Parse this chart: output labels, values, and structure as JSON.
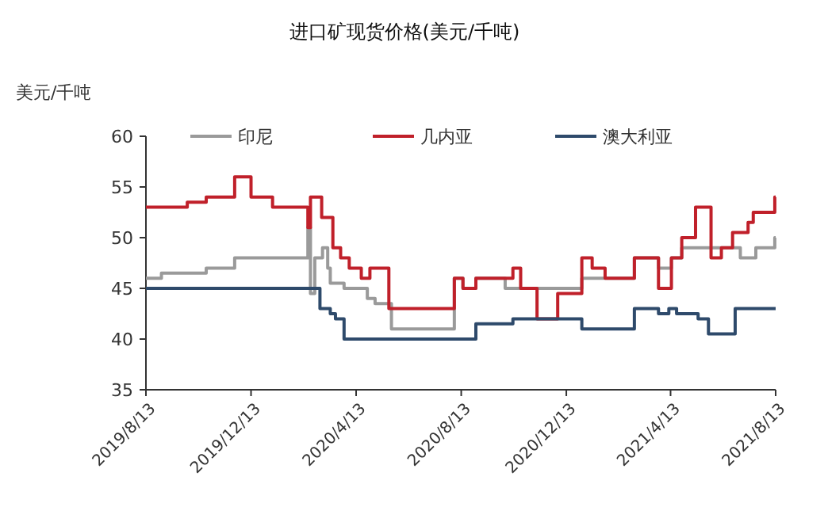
{
  "chart_data": {
    "type": "step",
    "title": "进口矿现货价格(美元/千吨)",
    "ylabel": "美元/千吨",
    "legend": "top",
    "grid": false,
    "line_style": "solid",
    "xlim": [
      "2019-08-13",
      "2021-08-13"
    ],
    "xticks": [
      {
        "value": "2019-08-13",
        "label": "2019/8/13"
      },
      {
        "value": "2019-12-13",
        "label": "2019/12/13"
      },
      {
        "value": "2020-04-13",
        "label": "2020/4/13"
      },
      {
        "value": "2020-08-13",
        "label": "2020/8/13"
      },
      {
        "value": "2020-12-13",
        "label": "2020/12/13"
      },
      {
        "value": "2021-04-13",
        "label": "2021/4/13"
      },
      {
        "value": "2021-08-13",
        "label": "2021/8/13"
      }
    ],
    "ylim": [
      35,
      60
    ],
    "yticks": [
      35,
      40,
      45,
      50,
      55,
      60
    ],
    "series": [
      {
        "name": "印尼",
        "color": "#9a9a9a",
        "x": [
          "2019-08-13",
          "2019-08-31",
          "2019-10-22",
          "2019-11-24",
          "2020-02-17",
          "2020-02-20",
          "2020-02-25",
          "2020-03-05",
          "2020-03-11",
          "2020-03-14",
          "2020-03-30",
          "2020-04-26",
          "2020-05-05",
          "2020-05-24",
          "2020-08-05",
          "2020-08-15",
          "2020-08-30",
          "2020-10-03",
          "2020-12-31",
          "2021-03-02",
          "2021-03-30",
          "2021-04-14",
          "2021-04-26",
          "2021-07-03",
          "2021-07-21",
          "2021-08-12",
          "2021-08-13"
        ],
        "values": [
          46,
          46.5,
          47,
          48,
          51,
          44.5,
          48,
          49,
          47,
          45.5,
          45,
          44,
          43.5,
          41,
          46,
          45,
          46,
          45,
          46,
          48,
          47,
          48,
          49,
          48,
          49,
          50,
          50
        ]
      },
      {
        "name": "几内亚",
        "color": "#c0202a",
        "x": [
          "2019-08-13",
          "2019-09-30",
          "2019-10-22",
          "2019-11-24",
          "2019-12-13",
          "2020-01-07",
          "2020-02-17",
          "2020-02-20",
          "2020-03-04",
          "2020-03-17",
          "2020-03-26",
          "2020-04-05",
          "2020-04-19",
          "2020-04-29",
          "2020-05-21",
          "2020-08-05",
          "2020-08-15",
          "2020-08-30",
          "2020-10-12",
          "2020-10-21",
          "2020-11-09",
          "2020-12-03",
          "2020-12-31",
          "2021-01-12",
          "2021-01-27",
          "2021-03-02",
          "2021-03-30",
          "2021-04-14",
          "2021-04-26",
          "2021-05-12",
          "2021-05-30",
          "2021-06-11",
          "2021-06-24",
          "2021-07-12",
          "2021-07-18",
          "2021-08-12",
          "2021-08-13"
        ],
        "values": [
          53,
          53.5,
          54,
          56,
          54,
          53,
          51,
          54,
          52,
          49,
          48,
          47,
          46,
          47,
          43,
          46,
          45,
          46,
          47,
          45,
          42,
          44.5,
          48,
          47,
          46,
          48,
          45,
          48,
          50,
          53,
          48,
          49,
          50.5,
          51.5,
          52.5,
          54,
          54
        ]
      },
      {
        "name": "澳大利亚",
        "color": "#2e4a6b",
        "x": [
          "2019-08-13",
          "2020-03-02",
          "2020-03-14",
          "2020-03-20",
          "2020-03-30",
          "2020-08-30",
          "2020-10-12",
          "2020-12-31",
          "2021-03-02",
          "2021-03-30",
          "2021-04-11",
          "2021-04-20",
          "2021-05-15",
          "2021-05-27",
          "2021-06-27",
          "2021-08-13"
        ],
        "values": [
          45,
          43,
          42.5,
          42,
          40,
          41.5,
          42,
          41,
          43,
          42.5,
          43,
          42.5,
          42,
          40.5,
          43,
          43
        ]
      }
    ]
  }
}
